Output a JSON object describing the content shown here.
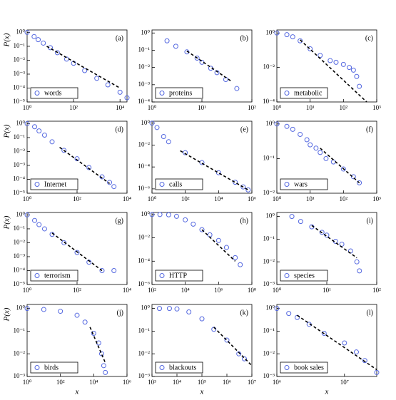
{
  "chart_data": [
    {
      "type": "scatter",
      "label": "(a)",
      "ylabel": "P(x)",
      "log_x": true,
      "log_y": true,
      "xlim": [
        1,
        20000
      ],
      "ylim": [
        1e-05,
        1.5
      ],
      "xticks": [
        {
          "value": 1,
          "label": "10⁰"
        },
        {
          "value": 100,
          "label": "10²"
        },
        {
          "value": 10000,
          "label": "10⁴"
        }
      ],
      "yticks": [
        {
          "value": 1e-05,
          "label": "10⁻⁵"
        },
        {
          "value": 0.0001,
          "label": "10⁻⁴"
        },
        {
          "value": 0.001,
          "label": "10⁻³"
        },
        {
          "value": 0.01,
          "label": "10⁻²"
        },
        {
          "value": 0.1,
          "label": "10⁻¹"
        },
        {
          "value": 1,
          "label": "10⁰"
        }
      ],
      "series": [
        {
          "name": "words",
          "color": "#5468e0",
          "x": [
            1,
            2,
            3,
            5,
            10,
            20,
            50,
            100,
            300,
            1000,
            3000,
            10000,
            20000
          ],
          "values": [
            1,
            0.5,
            0.3,
            0.17,
            0.08,
            0.035,
            0.012,
            0.006,
            0.0018,
            0.0005,
            0.00017,
            5e-05,
            2e-05
          ]
        }
      ],
      "fit": {
        "color": "#000000",
        "x": [
          7,
          10000
        ],
        "values": [
          0.1,
          0.0001
        ]
      }
    },
    {
      "type": "scatter",
      "label": "(b)",
      "log_x": true,
      "log_y": true,
      "xlim": [
        1,
        100
      ],
      "ylim": [
        0.0001,
        1.5
      ],
      "xticks": [
        {
          "value": 1,
          "label": "10⁰"
        },
        {
          "value": 10,
          "label": "10¹"
        },
        {
          "value": 100,
          "label": "10²"
        }
      ],
      "yticks": [
        {
          "value": 0.0001,
          "label": "10⁻⁴"
        },
        {
          "value": 0.001,
          "label": "10⁻³"
        },
        {
          "value": 0.01,
          "label": "10⁻²"
        },
        {
          "value": 0.1,
          "label": "10⁻¹"
        },
        {
          "value": 1,
          "label": "10⁰"
        }
      ],
      "series": [
        {
          "name": "proteins",
          "color": "#5468e0",
          "x": [
            2,
            3,
            5,
            8,
            10,
            15,
            20,
            30,
            50
          ],
          "values": [
            0.35,
            0.17,
            0.08,
            0.035,
            0.02,
            0.009,
            0.005,
            0.002,
            0.0006
          ]
        }
      ],
      "fit": {
        "color": "#000000",
        "x": [
          5,
          40
        ],
        "values": [
          0.09,
          0.0015
        ]
      }
    },
    {
      "type": "scatter",
      "label": "(c)",
      "log_x": true,
      "log_y": true,
      "xlim": [
        1,
        1000
      ],
      "ylim": [
        0.0001,
        1.5
      ],
      "xticks": [
        {
          "value": 1,
          "label": "10⁰"
        },
        {
          "value": 10,
          "label": "10¹"
        },
        {
          "value": 100,
          "label": "10²"
        },
        {
          "value": 1000,
          "label": "10³"
        }
      ],
      "yticks": [
        {
          "value": 0.0001,
          "label": "10⁻⁴"
        },
        {
          "value": 0.01,
          "label": "10⁻²"
        },
        {
          "value": 1,
          "label": "10⁰"
        }
      ],
      "series": [
        {
          "name": "metabolic",
          "color": "#5468e0",
          "x": [
            1,
            2,
            3,
            5,
            10,
            20,
            40,
            60,
            100,
            150,
            200,
            250,
            300
          ],
          "values": [
            1,
            0.8,
            0.6,
            0.35,
            0.12,
            0.05,
            0.025,
            0.02,
            0.015,
            0.01,
            0.007,
            0.003,
            0.0008
          ]
        }
      ],
      "fit": {
        "color": "#000000",
        "x": [
          5,
          500
        ],
        "values": [
          0.4,
          0.0001
        ]
      }
    },
    {
      "type": "scatter",
      "label": "(d)",
      "ylabel": "P(x)",
      "log_x": true,
      "log_y": true,
      "xlim": [
        1,
        10000
      ],
      "ylim": [
        1e-05,
        1.5
      ],
      "xticks": [
        {
          "value": 1,
          "label": "10⁰"
        },
        {
          "value": 100,
          "label": "10²"
        },
        {
          "value": 10000,
          "label": "10⁴"
        }
      ],
      "yticks": [
        {
          "value": 1e-05,
          "label": "10⁻⁵"
        },
        {
          "value": 0.0001,
          "label": "10⁻⁴"
        },
        {
          "value": 0.001,
          "label": "10⁻³"
        },
        {
          "value": 0.01,
          "label": "10⁻²"
        },
        {
          "value": 0.1,
          "label": "10⁻¹"
        },
        {
          "value": 1,
          "label": "10⁰"
        }
      ],
      "series": [
        {
          "name": "Internet",
          "color": "#5468e0",
          "x": [
            1,
            2,
            3,
            5,
            10,
            30,
            100,
            300,
            1000,
            2000,
            3000
          ],
          "values": [
            1,
            0.6,
            0.3,
            0.15,
            0.05,
            0.012,
            0.003,
            0.0007,
            0.00015,
            6e-05,
            3e-05
          ]
        }
      ],
      "fit": {
        "color": "#000000",
        "x": [
          20,
          2000
        ],
        "values": [
          0.02,
          5e-05
        ]
      }
    },
    {
      "type": "scatter",
      "label": "(e)",
      "log_x": true,
      "log_y": true,
      "xlim": [
        1,
        1000000
      ],
      "ylim": [
        4e-07,
        1.5
      ],
      "xticks": [
        {
          "value": 1,
          "label": "10⁰"
        },
        {
          "value": 100,
          "label": "10²"
        },
        {
          "value": 10000,
          "label": "10⁴"
        },
        {
          "value": 1000000,
          "label": "10⁶"
        }
      ],
      "yticks": [
        {
          "value": 1e-06,
          "label": "10⁻⁶"
        },
        {
          "value": 0.0001,
          "label": "10⁻⁴"
        },
        {
          "value": 0.01,
          "label": "10⁻²"
        },
        {
          "value": 1,
          "label": "10⁰"
        }
      ],
      "series": [
        {
          "name": "calls",
          "color": "#5468e0",
          "x": [
            1,
            2,
            5,
            10,
            100,
            1000,
            10000,
            100000,
            300000,
            600000
          ],
          "values": [
            1,
            0.4,
            0.06,
            0.02,
            0.002,
            0.00025,
            3e-05,
            4e-06,
            1.5e-06,
            8e-07
          ]
        }
      ],
      "fit": {
        "color": "#000000",
        "x": [
          50,
          600000
        ],
        "values": [
          0.003,
          8e-07
        ]
      }
    },
    {
      "type": "scatter",
      "label": "(f)",
      "log_x": true,
      "log_y": true,
      "xlim": [
        1,
        1000
      ],
      "ylim": [
        0.01,
        1.2
      ],
      "xticks": [
        {
          "value": 1,
          "label": "10⁰"
        },
        {
          "value": 10,
          "label": "10¹"
        },
        {
          "value": 100,
          "label": "10²"
        },
        {
          "value": 1000,
          "label": "10³"
        }
      ],
      "yticks": [
        {
          "value": 0.01,
          "label": "10⁻²"
        },
        {
          "value": 0.1,
          "label": "10⁻¹"
        },
        {
          "value": 1,
          "label": "10⁰"
        }
      ],
      "series": [
        {
          "name": "wars",
          "color": "#5468e0",
          "x": [
            1,
            2,
            3,
            5,
            8,
            10,
            15,
            20,
            30,
            50,
            100,
            200,
            300
          ],
          "values": [
            1,
            0.85,
            0.7,
            0.5,
            0.35,
            0.25,
            0.2,
            0.15,
            0.1,
            0.08,
            0.05,
            0.03,
            0.02
          ]
        }
      ],
      "fit": {
        "color": "#000000",
        "x": [
          20,
          300
        ],
        "values": [
          0.2,
          0.02
        ]
      }
    },
    {
      "type": "scatter",
      "label": "(g)",
      "ylabel": "P(x)",
      "log_x": true,
      "log_y": true,
      "xlim": [
        1,
        10000
      ],
      "ylim": [
        1e-05,
        1.5
      ],
      "xticks": [
        {
          "value": 1,
          "label": "10⁰"
        },
        {
          "value": 100,
          "label": "10²"
        },
        {
          "value": 10000,
          "label": "10⁴"
        }
      ],
      "yticks": [
        {
          "value": 1e-05,
          "label": "10⁻⁵"
        },
        {
          "value": 0.0001,
          "label": "10⁻⁴"
        },
        {
          "value": 0.001,
          "label": "10⁻³"
        },
        {
          "value": 0.01,
          "label": "10⁻²"
        },
        {
          "value": 0.1,
          "label": "10⁻¹"
        },
        {
          "value": 1,
          "label": "10⁰"
        }
      ],
      "series": [
        {
          "name": "terrorism",
          "color": "#5468e0",
          "x": [
            1,
            2,
            3,
            5,
            10,
            30,
            100,
            300,
            1000,
            3000
          ],
          "values": [
            1,
            0.4,
            0.2,
            0.1,
            0.04,
            0.01,
            0.002,
            0.0004,
            0.0001,
            0.0001
          ]
        }
      ],
      "fit": {
        "color": "#000000",
        "x": [
          10,
          1000
        ],
        "values": [
          0.05,
          0.0001
        ]
      }
    },
    {
      "type": "scatter",
      "label": "(h)",
      "log_x": true,
      "log_y": true,
      "xlim": [
        100,
        100000000
      ],
      "ylim": [
        1e-06,
        1.5
      ],
      "xticks": [
        {
          "value": 100,
          "label": "10²"
        },
        {
          "value": 10000,
          "label": "10⁴"
        },
        {
          "value": 1000000,
          "label": "10⁶"
        },
        {
          "value": 100000000,
          "label": "10⁸"
        }
      ],
      "yticks": [
        {
          "value": 1e-06,
          "label": "10⁻⁶"
        },
        {
          "value": 0.0001,
          "label": "10⁻⁴"
        },
        {
          "value": 0.01,
          "label": "10⁻²"
        },
        {
          "value": 1,
          "label": "10⁰"
        }
      ],
      "series": [
        {
          "name": "HTTP",
          "color": "#5468e0",
          "x": [
            100,
            300,
            1000,
            3000,
            10000,
            30000,
            100000,
            300000,
            1000000,
            3000000,
            10000000,
            20000000
          ],
          "values": [
            1,
            1,
            0.95,
            0.7,
            0.35,
            0.15,
            0.05,
            0.018,
            0.006,
            0.0015,
            0.0002,
            5e-05
          ]
        }
      ],
      "fit": {
        "color": "#000000",
        "x": [
          100000,
          10000000
        ],
        "values": [
          0.05,
          0.0001
        ]
      }
    },
    {
      "type": "scatter",
      "label": "(i)",
      "log_x": true,
      "log_y": true,
      "xlim": [
        1,
        100
      ],
      "ylim": [
        0.001,
        1.5
      ],
      "xticks": [
        {
          "value": 1,
          "label": "10⁰"
        },
        {
          "value": 10,
          "label": "10¹"
        },
        {
          "value": 100,
          "label": "10²"
        }
      ],
      "yticks": [
        {
          "value": 0.001,
          "label": "10⁻³"
        },
        {
          "value": 0.01,
          "label": "10⁻²"
        },
        {
          "value": 0.1,
          "label": "10⁻¹"
        },
        {
          "value": 1,
          "label": "10⁰"
        }
      ],
      "series": [
        {
          "name": "species",
          "color": "#5468e0",
          "x": [
            2,
            3,
            5,
            8,
            10,
            15,
            20,
            30,
            40,
            45
          ],
          "values": [
            1,
            0.6,
            0.35,
            0.2,
            0.15,
            0.08,
            0.06,
            0.03,
            0.01,
            0.004
          ]
        }
      ],
      "fit": {
        "color": "#000000",
        "x": [
          5,
          40
        ],
        "values": [
          0.4,
          0.015
        ]
      }
    },
    {
      "type": "scatter",
      "label": "(j)",
      "ylabel": "P(x)",
      "xlabel": "x",
      "log_x": true,
      "log_y": true,
      "xlim": [
        1,
        1000000
      ],
      "ylim": [
        0.001,
        1.5
      ],
      "xticks": [
        {
          "value": 1,
          "label": "10⁰"
        },
        {
          "value": 100,
          "label": "10²"
        },
        {
          "value": 10000,
          "label": "10⁴"
        },
        {
          "value": 1000000,
          "label": "10⁶"
        }
      ],
      "yticks": [
        {
          "value": 0.001,
          "label": "10⁻³"
        },
        {
          "value": 0.01,
          "label": "10⁻²"
        },
        {
          "value": 0.1,
          "label": "10⁻¹"
        },
        {
          "value": 1,
          "label": "10⁰"
        }
      ],
      "series": [
        {
          "name": "birds",
          "color": "#5468e0",
          "x": [
            1,
            10,
            100,
            1000,
            3000,
            10000,
            20000,
            30000,
            40000,
            50000
          ],
          "values": [
            1,
            0.9,
            0.75,
            0.5,
            0.25,
            0.08,
            0.03,
            0.01,
            0.003,
            0.0015
          ]
        }
      ],
      "fit": {
        "color": "#000000",
        "x": [
          6000,
          50000
        ],
        "values": [
          0.15,
          0.004
        ]
      }
    },
    {
      "type": "scatter",
      "label": "(k)",
      "xlabel": "x",
      "log_x": true,
      "log_y": true,
      "xlim": [
        1000,
        10000000
      ],
      "ylim": [
        0.001,
        1.5
      ],
      "xticks": [
        {
          "value": 1000,
          "label": "10³"
        },
        {
          "value": 10000,
          "label": "10⁴"
        },
        {
          "value": 100000,
          "label": "10⁵"
        },
        {
          "value": 1000000,
          "label": "10⁶"
        },
        {
          "value": 10000000,
          "label": "10⁷"
        }
      ],
      "yticks": [
        {
          "value": 0.001,
          "label": "10⁻³"
        },
        {
          "value": 0.01,
          "label": "10⁻²"
        },
        {
          "value": 0.1,
          "label": "10⁻¹"
        },
        {
          "value": 1,
          "label": "10⁰"
        }
      ],
      "series": [
        {
          "name": "blackouts",
          "color": "#5468e0",
          "x": [
            2000,
            5000,
            10000,
            30000,
            100000,
            300000,
            1000000,
            3000000,
            5000000
          ],
          "values": [
            1,
            1,
            0.95,
            0.7,
            0.35,
            0.12,
            0.04,
            0.01,
            0.006
          ]
        }
      ],
      "fit": {
        "color": "#000000",
        "x": [
          300000,
          10000000
        ],
        "values": [
          0.15,
          0.003
        ]
      }
    },
    {
      "type": "scatter",
      "label": "(l)",
      "xlabel": "x",
      "log_x": true,
      "log_y": true,
      "xlim": [
        1000000,
        30000000
      ],
      "ylim": [
        0.001,
        1.5
      ],
      "xticks": [
        {
          "value": 1000000,
          "label": "10⁶"
        },
        {
          "value": 10000000,
          "label": "10⁷"
        }
      ],
      "yticks": [
        {
          "value": 0.001,
          "label": "10⁻³"
        },
        {
          "value": 0.01,
          "label": "10⁻²"
        },
        {
          "value": 0.1,
          "label": "10⁻¹"
        },
        {
          "value": 1,
          "label": "10⁰"
        }
      ],
      "series": [
        {
          "name": "book sales",
          "color": "#5468e0",
          "x": [
            1000000,
            1500000,
            2000000,
            3000000,
            5000000,
            10000000,
            15000000,
            20000000,
            30000000
          ],
          "values": [
            1,
            0.6,
            0.4,
            0.2,
            0.08,
            0.03,
            0.012,
            0.005,
            0.0015
          ]
        }
      ],
      "fit": {
        "color": "#000000",
        "x": [
          2000000,
          30000000
        ],
        "values": [
          0.5,
          0.002
        ]
      }
    }
  ]
}
